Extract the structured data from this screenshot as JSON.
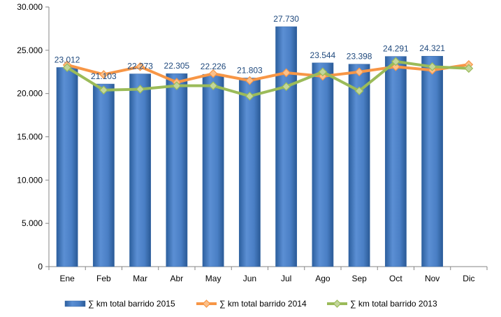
{
  "chart_data": {
    "type": "bar",
    "categories": [
      "Ene",
      "Feb",
      "Mar",
      "Abr",
      "May",
      "Jun",
      "Jul",
      "Ago",
      "Sep",
      "Oct",
      "Nov",
      "Dic"
    ],
    "series": [
      {
        "name": "∑ km total barrido 2015",
        "type": "bar",
        "color": "#4f81bd",
        "values": [
          23012,
          21103,
          22273,
          22305,
          22226,
          21803,
          27730,
          23544,
          23398,
          24291,
          24321,
          null
        ],
        "labels": [
          "23.012",
          "21.103",
          "22.273",
          "22.305",
          "22.226",
          "21.803",
          "27.730",
          "23.544",
          "23.398",
          "24.291",
          "24.321",
          ""
        ]
      },
      {
        "name": "∑ km total barrido 2014",
        "type": "line",
        "marker": "diamond",
        "color": "#f79646",
        "values": [
          23300,
          22200,
          23100,
          21300,
          22300,
          21500,
          22400,
          22000,
          22500,
          23100,
          22700,
          23350
        ]
      },
      {
        "name": "∑ km total barrido 2013",
        "type": "line",
        "marker": "diamond",
        "color": "#9bbb59",
        "values": [
          23000,
          20400,
          20500,
          20900,
          20900,
          19700,
          20800,
          22500,
          20300,
          23700,
          23100,
          22900
        ]
      }
    ],
    "ylim": [
      0,
      30000
    ],
    "yticks": [
      "0",
      "5.000",
      "10.000",
      "15.000",
      "20.000",
      "25.000",
      "30.000"
    ],
    "ytick_values": [
      0,
      5000,
      10000,
      15000,
      20000,
      25000,
      30000
    ],
    "grid": false,
    "legend": "bottom",
    "xlabel": "",
    "ylabel": "",
    "title": ""
  }
}
